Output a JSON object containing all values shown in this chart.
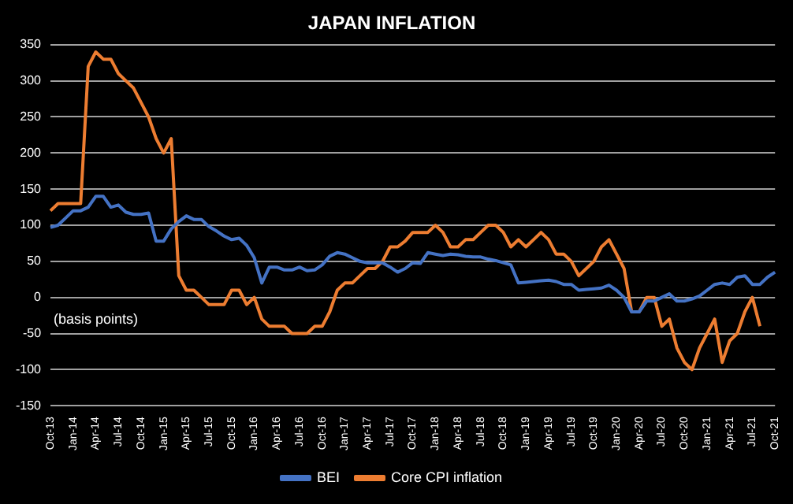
{
  "chart_data": {
    "type": "line",
    "title": "JAPAN INFLATION",
    "annotations": [
      "(basis points)"
    ],
    "categories": [
      "Oct-13",
      null,
      null,
      "Jan-14",
      null,
      null,
      "Apr-14",
      null,
      null,
      "Jul-14",
      null,
      null,
      "Oct-14",
      null,
      null,
      "Jan-15",
      null,
      null,
      "Apr-15",
      null,
      null,
      "Jul-15",
      null,
      null,
      "Oct-15",
      null,
      null,
      "Jan-16",
      null,
      null,
      "Apr-16",
      null,
      null,
      "Jul-16",
      null,
      null,
      "Oct-16",
      null,
      null,
      "Jan-17",
      null,
      null,
      "Apr-17",
      null,
      null,
      "Jul-17",
      null,
      null,
      "Oct-17",
      null,
      null,
      "Jan-18",
      null,
      null,
      "Apr-18",
      null,
      null,
      "Jul-18",
      null,
      null,
      "Oct-18",
      null,
      null,
      "Jan-19",
      null,
      null,
      "Apr-19",
      null,
      null,
      "Jul-19",
      null,
      null,
      "Oct-19",
      null,
      null,
      "Jan-20",
      null,
      null,
      "Apr-20",
      null,
      null,
      "Jul-20",
      null,
      null,
      "Oct-20",
      null,
      null,
      "Jan-21",
      null,
      null,
      "Apr-21",
      null,
      null,
      "Jul-21",
      null,
      null,
      "Oct-21"
    ],
    "series": [
      {
        "name": "BEI",
        "color": "#4472c4",
        "values": [
          97,
          100,
          110,
          120,
          120,
          125,
          140,
          140,
          125,
          128,
          118,
          115,
          115,
          117,
          78,
          78,
          95,
          105,
          113,
          108,
          108,
          98,
          92,
          85,
          80,
          82,
          72,
          55,
          20,
          42,
          42,
          38,
          38,
          42,
          37,
          38,
          45,
          57,
          62,
          60,
          55,
          50,
          48,
          48,
          48,
          42,
          35,
          40,
          48,
          47,
          62,
          60,
          58,
          60,
          59,
          57,
          56,
          56,
          53,
          51,
          48,
          45,
          20,
          21,
          22,
          23,
          24,
          22,
          18,
          18,
          10,
          11,
          12,
          13,
          17,
          10,
          0,
          -20,
          -20,
          -5,
          -5,
          0,
          5,
          -5,
          -5,
          -2,
          2,
          10,
          18,
          20,
          18,
          28,
          30,
          18,
          18,
          28,
          35
        ]
      },
      {
        "name": "Core CPI inflation",
        "color": "#ed7d31",
        "values": [
          120,
          130,
          130,
          130,
          130,
          320,
          340,
          330,
          330,
          310,
          300,
          290,
          270,
          250,
          220,
          200,
          220,
          30,
          10,
          10,
          0,
          -10,
          -10,
          -10,
          10,
          10,
          -10,
          0,
          -30,
          -40,
          -40,
          -40,
          -50,
          -50,
          -50,
          -40,
          -40,
          -20,
          10,
          20,
          20,
          30,
          40,
          40,
          50,
          70,
          70,
          78,
          90,
          90,
          90,
          100,
          90,
          70,
          70,
          80,
          80,
          90,
          100,
          100,
          90,
          70,
          80,
          70,
          80,
          90,
          80,
          60,
          60,
          50,
          30,
          40,
          50,
          70,
          80,
          60,
          40,
          -20,
          -20,
          0,
          0,
          -40,
          -30,
          -70,
          -90,
          -100,
          -70,
          -50,
          -30,
          -90,
          -60,
          -50,
          -20,
          0,
          -40,
          null,
          null
        ]
      }
    ],
    "ylim": [
      -150,
      350
    ],
    "yticks": [
      -150,
      -100,
      -50,
      0,
      50,
      100,
      150,
      200,
      250,
      300,
      350
    ],
    "grid": "y",
    "legend": "bottom",
    "marker": "none",
    "line_style": "solid"
  }
}
